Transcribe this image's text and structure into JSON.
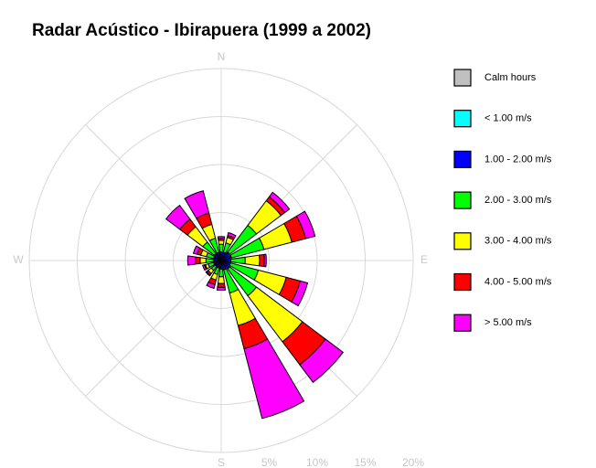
{
  "chart_data": {
    "type": "windrose",
    "title": "Radar Acústico - Ibirapuera (1999 a 2002)",
    "angles": [
      0,
      22.5,
      45,
      67.5,
      90,
      112.5,
      135,
      157.5,
      180,
      202.5,
      225,
      247.5,
      270,
      292.5,
      315,
      337.5
    ],
    "compass": [
      {
        "value": 0,
        "label": "N"
      },
      {
        "value": 90,
        "label": "E"
      },
      {
        "value": 180,
        "label": "S"
      },
      {
        "value": 270,
        "label": "W"
      }
    ],
    "rlim": [
      0,
      20
    ],
    "rticks": [
      {
        "value": 5,
        "label": "5%"
      },
      {
        "value": 10,
        "label": "10%"
      },
      {
        "value": 15,
        "label": "15%"
      },
      {
        "value": 20,
        "label": "20%"
      }
    ],
    "calm": {
      "name": "Calm hours",
      "color": "#c0c0c0"
    },
    "series": [
      {
        "name": "< 1.00 m/s",
        "color": "#00ffff",
        "values": [
          0.3,
          0.3,
          0.3,
          0.3,
          0.3,
          0.3,
          0.3,
          0.3,
          0.3,
          0.3,
          0.3,
          0.3,
          0.3,
          0.3,
          0.3,
          0.3
        ]
      },
      {
        "name": "1.00 - 2.00 m/s",
        "color": "#0000ff",
        "values": [
          0.6,
          0.6,
          0.8,
          0.8,
          0.7,
          0.7,
          0.8,
          0.7,
          0.6,
          0.5,
          0.5,
          0.5,
          0.5,
          0.5,
          0.6,
          0.6
        ]
      },
      {
        "name": "2.00 - 3.00 m/s",
        "color": "#00ff00",
        "values": [
          0.8,
          1,
          3.5,
          3.5,
          1.5,
          3,
          3.5,
          2.5,
          0.8,
          0.7,
          0.5,
          0.6,
          0.8,
          0.8,
          1.5,
          1.5
        ]
      },
      {
        "name": "3.00 - 4.00 m/s",
        "color": "#ffff00",
        "values": [
          0.4,
          0.6,
          3.2,
          3,
          1.5,
          3,
          6,
          3.5,
          0.7,
          0.6,
          0.4,
          0.3,
          0.6,
          0.6,
          2,
          1.5
        ]
      },
      {
        "name": "4.00 - 5.00 m/s",
        "color": "#ff0000",
        "values": [
          0.2,
          0.2,
          0.5,
          1.5,
          0.5,
          1.5,
          3,
          2.5,
          0.4,
          0.5,
          0.2,
          0.1,
          0.5,
          0.4,
          1,
          1.2
        ]
      },
      {
        "name": "> 5.00 m/s",
        "color": "#ff00ff",
        "values": [
          0.2,
          0.3,
          0.6,
          1,
          0.2,
          0.8,
          2.3,
          7.5,
          0.3,
          0.4,
          0.1,
          0.2,
          0.8,
          0.4,
          1.8,
          2.4
        ]
      }
    ]
  }
}
